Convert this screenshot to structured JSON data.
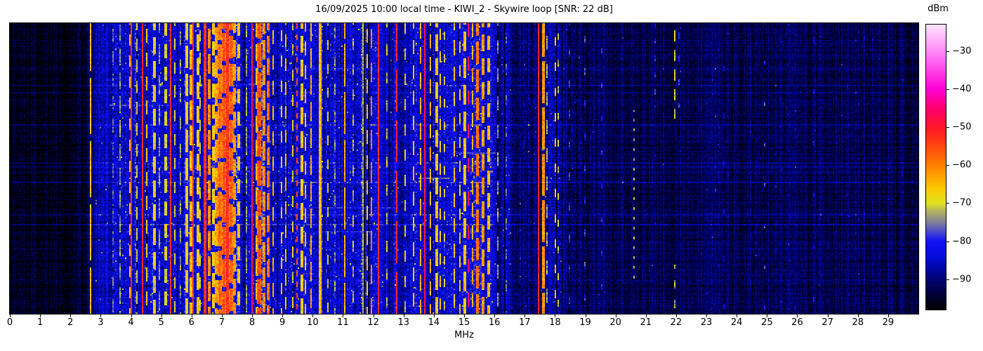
{
  "title": "16/09/2025 10:00 local time - KIWI_2 - Skywire loop [SNR: 22 dB]",
  "x_axis": {
    "label": "MHz",
    "min": 0,
    "max": 30,
    "ticks": [
      0,
      1,
      2,
      3,
      4,
      5,
      6,
      7,
      8,
      9,
      10,
      11,
      12,
      13,
      14,
      15,
      16,
      17,
      18,
      19,
      20,
      21,
      22,
      23,
      24,
      25,
      26,
      27,
      28,
      29
    ]
  },
  "colorbar": {
    "label": "dBm",
    "min": -98,
    "max": -23,
    "ticks": [
      -30,
      -40,
      -50,
      -60,
      -70,
      -80,
      -90
    ]
  },
  "chart_data": {
    "type": "heatmap",
    "subtype": "radio-spectrum-waterfall",
    "title": "16/09/2025 10:00 local time - KIWI_2 - Skywire loop [SNR: 22 dB]",
    "xlabel": "MHz",
    "x_range": [
      0,
      30
    ],
    "y_axis": "time (unlabeled, newest rows span full plot height)",
    "value_unit": "dBm",
    "value_range": [
      -98,
      -23
    ],
    "snr_db": 22,
    "seed": 1337,
    "color_stops": [
      [
        -98,
        0,
        0,
        0
      ],
      [
        -93,
        0,
        0,
        72
      ],
      [
        -88,
        0,
        6,
        150
      ],
      [
        -84,
        6,
        12,
        222
      ],
      [
        -80,
        18,
        18,
        242
      ],
      [
        -78,
        64,
        64,
        212
      ],
      [
        -75,
        128,
        128,
        152
      ],
      [
        -72,
        182,
        182,
        92
      ],
      [
        -70,
        226,
        226,
        32
      ],
      [
        -66,
        252,
        200,
        0
      ],
      [
        -60,
        255,
        128,
        0
      ],
      [
        -54,
        255,
        60,
        20
      ],
      [
        -50,
        255,
        22,
        40
      ],
      [
        -45,
        255,
        0,
        110
      ],
      [
        -40,
        255,
        0,
        212
      ],
      [
        -32,
        255,
        110,
        246
      ],
      [
        -23,
        255,
        228,
        252
      ]
    ],
    "noise_floor_points": [
      [
        0,
        -95.5
      ],
      [
        2.3,
        -95.5
      ],
      [
        2.8,
        -91
      ],
      [
        3.5,
        -88.5
      ],
      [
        16.0,
        -88.5
      ],
      [
        16.8,
        -90.5
      ],
      [
        18.5,
        -91.5
      ],
      [
        20.0,
        -92.5
      ],
      [
        30.0,
        -92.5
      ]
    ],
    "bands_format": [
      "f_start_MHz",
      "f_end_MHz",
      "base_level_dBm"
    ],
    "bands": [
      [
        2.55,
        2.8,
        -90
      ],
      [
        2.8,
        3.4,
        -87
      ],
      [
        3.4,
        5.4,
        -85
      ],
      [
        5.4,
        5.75,
        -86
      ],
      [
        5.75,
        6.3,
        -84
      ],
      [
        6.3,
        6.9,
        -84
      ],
      [
        6.9,
        7.6,
        -82
      ],
      [
        7.6,
        7.95,
        -85
      ],
      [
        7.95,
        8.7,
        -84
      ],
      [
        8.7,
        9.4,
        -86
      ],
      [
        9.4,
        10.35,
        -84
      ],
      [
        10.35,
        11.2,
        -86
      ],
      [
        11.2,
        12.3,
        -85
      ],
      [
        12.3,
        13.2,
        -87
      ],
      [
        13.2,
        14.45,
        -85
      ],
      [
        14.45,
        16.0,
        -84
      ],
      [
        16.0,
        16.6,
        -88
      ],
      [
        17.3,
        18.3,
        -87
      ]
    ],
    "carriers_format": [
      "f_MHz",
      "level_dBm",
      "width_bins",
      "dash_on_rows",
      "dash_off_rows",
      "row_start_opt",
      "row_end_opt"
    ],
    "carriers": [
      [
        2.67,
        -66,
        1,
        40,
        5
      ],
      [
        3.42,
        -77,
        1,
        10,
        6
      ],
      [
        3.64,
        -74,
        1,
        12,
        5
      ],
      [
        3.97,
        -67,
        1,
        8,
        7
      ],
      [
        4.02,
        -52,
        1,
        999,
        0
      ],
      [
        4.2,
        -70,
        1,
        9,
        6
      ],
      [
        4.38,
        -51,
        1,
        999,
        0
      ],
      [
        4.52,
        -67,
        1,
        10,
        7
      ],
      [
        4.75,
        -66,
        2,
        12,
        5
      ],
      [
        4.95,
        -74,
        1,
        14,
        8
      ],
      [
        5.12,
        -66,
        2,
        10,
        6
      ],
      [
        5.32,
        -52,
        1,
        999,
        0
      ],
      [
        5.47,
        -69,
        1,
        8,
        9
      ],
      [
        5.62,
        -74,
        1,
        10,
        10
      ],
      [
        5.8,
        -65,
        2,
        16,
        4
      ],
      [
        5.95,
        -62,
        2,
        14,
        4
      ],
      [
        6.05,
        -53,
        1,
        999,
        0
      ],
      [
        6.18,
        -64,
        2,
        12,
        5
      ],
      [
        6.3,
        -70,
        1,
        8,
        8
      ],
      [
        6.44,
        -50,
        2,
        999,
        0
      ],
      [
        6.55,
        -58,
        2,
        14,
        4
      ],
      [
        6.68,
        -64,
        2,
        10,
        5
      ],
      [
        6.8,
        -60,
        2,
        16,
        4
      ],
      [
        6.92,
        -57,
        3,
        18,
        3
      ],
      [
        7.05,
        -55,
        3,
        20,
        3
      ],
      [
        7.18,
        -50,
        2,
        999,
        0
      ],
      [
        7.28,
        -56,
        3,
        16,
        4
      ],
      [
        7.4,
        -59,
        2,
        12,
        5
      ],
      [
        7.55,
        -63,
        2,
        10,
        6
      ],
      [
        7.8,
        -74,
        1,
        20,
        8
      ],
      [
        8.0,
        -49,
        1,
        999,
        0
      ],
      [
        8.12,
        -62,
        2,
        12,
        5
      ],
      [
        8.25,
        -54,
        3,
        18,
        3
      ],
      [
        8.38,
        -58,
        2,
        14,
        4
      ],
      [
        8.52,
        -56,
        2,
        12,
        4
      ],
      [
        8.68,
        -65,
        1,
        10,
        8
      ],
      [
        8.95,
        -68,
        1,
        8,
        10
      ],
      [
        9.1,
        -66,
        1,
        9,
        8
      ],
      [
        9.32,
        -70,
        1,
        8,
        10
      ],
      [
        9.5,
        -55,
        1,
        4,
        4
      ],
      [
        9.6,
        -64,
        2,
        12,
        5
      ],
      [
        9.75,
        -66,
        1,
        10,
        7
      ],
      [
        9.95,
        -64,
        1,
        14,
        5
      ],
      [
        10.22,
        -62,
        2,
        999,
        0
      ],
      [
        10.5,
        -70,
        1,
        7,
        10
      ],
      [
        10.75,
        -74,
        1,
        8,
        12
      ],
      [
        11.05,
        -64,
        1,
        30,
        4
      ],
      [
        11.35,
        -72,
        1,
        8,
        10
      ],
      [
        11.66,
        -73,
        1,
        999,
        0
      ],
      [
        11.78,
        -66,
        1,
        10,
        8
      ],
      [
        11.95,
        -60,
        1,
        14,
        10
      ],
      [
        12.18,
        -51,
        1,
        999,
        0
      ],
      [
        12.45,
        -72,
        1,
        8,
        12
      ],
      [
        12.78,
        -51,
        1,
        30,
        6
      ],
      [
        13.05,
        -70,
        1,
        8,
        10
      ],
      [
        13.35,
        -67,
        1,
        10,
        8
      ],
      [
        13.55,
        -64,
        1,
        12,
        6
      ],
      [
        13.68,
        -49,
        1,
        999,
        0
      ],
      [
        13.9,
        -65,
        1,
        10,
        6
      ],
      [
        14.05,
        -63,
        2,
        12,
        5
      ],
      [
        14.2,
        -67,
        1,
        8,
        8
      ],
      [
        14.35,
        -70,
        1,
        6,
        10
      ],
      [
        14.68,
        -66,
        1,
        10,
        8
      ],
      [
        14.85,
        -69,
        1,
        8,
        9
      ],
      [
        15.02,
        -63,
        2,
        14,
        5
      ],
      [
        15.16,
        -45,
        1,
        10,
        14
      ],
      [
        15.3,
        -64,
        1,
        10,
        6
      ],
      [
        15.42,
        -56,
        2,
        16,
        4
      ],
      [
        15.62,
        -59,
        2,
        12,
        5
      ],
      [
        15.78,
        -62,
        2,
        10,
        6
      ],
      [
        16.1,
        -74,
        1,
        10,
        10
      ],
      [
        16.4,
        -77,
        1,
        8,
        14
      ],
      [
        17.47,
        -50,
        1,
        999,
        0
      ],
      [
        17.58,
        -59,
        2,
        30,
        3
      ],
      [
        17.72,
        -73,
        1,
        10,
        10
      ],
      [
        18.02,
        -66,
        1,
        6,
        12
      ],
      [
        18.12,
        -72,
        1,
        5,
        14
      ],
      [
        18.5,
        -80,
        1,
        6,
        16
      ],
      [
        19.0,
        -79,
        1,
        5,
        18
      ],
      [
        19.55,
        -81,
        1,
        4,
        20
      ],
      [
        20.6,
        -72,
        1,
        2,
        5,
        62,
        185
      ],
      [
        21.3,
        -80,
        1,
        4,
        8,
        0,
        60
      ],
      [
        21.95,
        -70,
        1,
        8,
        6,
        0,
        68
      ],
      [
        21.95,
        -73,
        1,
        6,
        8,
        172,
        207
      ],
      [
        22.1,
        -80,
        1,
        5,
        12,
        0,
        60
      ],
      [
        23.6,
        -85,
        1,
        4,
        30
      ],
      [
        24.9,
        -79,
        1,
        3,
        26
      ],
      [
        26.55,
        -82,
        1,
        3,
        34
      ],
      [
        28.2,
        -87,
        1,
        3,
        40
      ]
    ],
    "bursts_format": [
      "y_px",
      "f_start_MHz",
      "f_end_MHz",
      "level_dBm"
    ],
    "bursts": [
      [
        148,
        3.3,
        5.3,
        -79
      ],
      [
        295,
        9.4,
        12.7,
        -80
      ],
      [
        253,
        13.5,
        14.5,
        -76
      ],
      [
        216,
        14.6,
        16.0,
        -78
      ],
      [
        118,
        6.8,
        8.7,
        -80
      ],
      [
        360,
        5.8,
        7.6,
        -79
      ],
      [
        97,
        9.9,
        12.3,
        -81
      ],
      [
        328,
        10.4,
        11.9,
        -80
      ]
    ]
  }
}
